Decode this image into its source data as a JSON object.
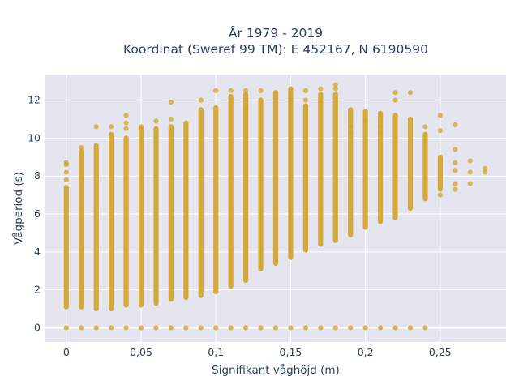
{
  "chart_data": {
    "type": "scatter",
    "title_line1": "År 1979 - 2019",
    "title_line2": "Koordinat (Sweref 99 TM): E 452167, N 6190590",
    "xlabel": "Signifikant våghöjd (m)",
    "ylabel": "Vågperiod (s)",
    "xlim": [
      -0.014,
      0.294
    ],
    "ylim": [
      -0.75,
      13.35
    ],
    "x_ticks": [
      0,
      0.05,
      0.1,
      0.15,
      0.2,
      0.25
    ],
    "x_tick_labels": [
      "0",
      "0,05",
      "0,1",
      "0,15",
      "0,2",
      "0,25"
    ],
    "y_ticks": [
      0,
      2,
      4,
      6,
      8,
      10,
      12
    ],
    "y_tick_labels": [
      "0",
      "2",
      "4",
      "6",
      "8",
      "10",
      "12"
    ],
    "grid": true,
    "marker_color": "#d4a324",
    "plot_bg": "#e5e5ef",
    "columns": [
      {
        "x": 0.0,
        "ymin": 1.1,
        "ymax": 7.4,
        "outliers": [
          8.7,
          8.6,
          8.2,
          7.8
        ],
        "zero": true
      },
      {
        "x": 0.01,
        "ymin": 1.1,
        "ymax": 9.3,
        "outliers": [
          9.5
        ],
        "zero": true
      },
      {
        "x": 0.02,
        "ymin": 1.0,
        "ymax": 9.6,
        "outliers": [
          10.6
        ],
        "zero": true
      },
      {
        "x": 0.03,
        "ymin": 1.0,
        "ymax": 10.2,
        "outliers": [
          10.6
        ],
        "zero": true
      },
      {
        "x": 0.04,
        "ymin": 1.2,
        "ymax": 10.0,
        "outliers": [
          11.2,
          10.8,
          10.5
        ],
        "zero": true
      },
      {
        "x": 0.05,
        "ymin": 1.2,
        "ymax": 10.5,
        "outliers": [
          10.6
        ],
        "zero": true
      },
      {
        "x": 0.06,
        "ymin": 1.3,
        "ymax": 10.5,
        "outliers": [
          10.9
        ],
        "zero": true
      },
      {
        "x": 0.07,
        "ymin": 1.5,
        "ymax": 10.6,
        "outliers": [
          11.9,
          11.0
        ],
        "zero": true
      },
      {
        "x": 0.08,
        "ymin": 1.6,
        "ymax": 10.8,
        "outliers": [],
        "zero": true
      },
      {
        "x": 0.09,
        "ymin": 1.7,
        "ymax": 11.5,
        "outliers": [
          12.0
        ],
        "zero": true
      },
      {
        "x": 0.1,
        "ymin": 1.9,
        "ymax": 11.6,
        "outliers": [
          12.5
        ],
        "zero": true
      },
      {
        "x": 0.11,
        "ymin": 2.2,
        "ymax": 12.2,
        "outliers": [
          12.5
        ],
        "zero": true
      },
      {
        "x": 0.12,
        "ymin": 2.5,
        "ymax": 12.3,
        "outliers": [
          12.5,
          11.6
        ],
        "zero": true
      },
      {
        "x": 0.13,
        "ymin": 3.1,
        "ymax": 12.0,
        "outliers": [
          12.5
        ],
        "zero": true
      },
      {
        "x": 0.14,
        "ymin": 3.4,
        "ymax": 12.4,
        "outliers": [],
        "zero": true
      },
      {
        "x": 0.15,
        "ymin": 3.7,
        "ymax": 12.6,
        "outliers": [],
        "zero": true
      },
      {
        "x": 0.16,
        "ymin": 4.1,
        "ymax": 11.7,
        "outliers": [
          12.5,
          12.0
        ],
        "zero": true
      },
      {
        "x": 0.17,
        "ymin": 4.4,
        "ymax": 12.3,
        "outliers": [
          12.6,
          11.9
        ],
        "zero": true
      },
      {
        "x": 0.18,
        "ymin": 4.6,
        "ymax": 12.3,
        "outliers": [
          12.8,
          12.6
        ],
        "zero": true
      },
      {
        "x": 0.19,
        "ymin": 4.9,
        "ymax": 11.5,
        "outliers": [
          10.6,
          10.3
        ],
        "zero": true
      },
      {
        "x": 0.2,
        "ymin": 5.3,
        "ymax": 11.4,
        "outliers": [
          10.9
        ],
        "zero": true
      },
      {
        "x": 0.21,
        "ymin": 5.6,
        "ymax": 11.3,
        "outliers": [
          10.6,
          10.3
        ],
        "zero": true
      },
      {
        "x": 0.22,
        "ymin": 5.8,
        "ymax": 11.2,
        "outliers": [
          12.4,
          12.0
        ],
        "zero": true
      },
      {
        "x": 0.23,
        "ymin": 6.3,
        "ymax": 11.0,
        "outliers": [
          12.4
        ],
        "zero": true
      },
      {
        "x": 0.24,
        "ymin": 6.8,
        "ymax": 10.2,
        "outliers": [
          10.6
        ],
        "zero": true
      },
      {
        "x": 0.25,
        "ymin": 7.3,
        "ymax": 9.0,
        "outliers": [
          11.2,
          10.4,
          7.0
        ],
        "zero": false
      },
      {
        "x": 0.26,
        "ymin": null,
        "ymax": null,
        "outliers": [
          10.7,
          9.4,
          8.7,
          8.3,
          7.6,
          7.3
        ],
        "zero": false
      },
      {
        "x": 0.27,
        "ymin": null,
        "ymax": null,
        "outliers": [
          8.8,
          8.2,
          7.6
        ],
        "zero": false
      },
      {
        "x": 0.28,
        "ymin": null,
        "ymax": null,
        "outliers": [
          8.4,
          8.2
        ],
        "zero": false
      }
    ]
  }
}
